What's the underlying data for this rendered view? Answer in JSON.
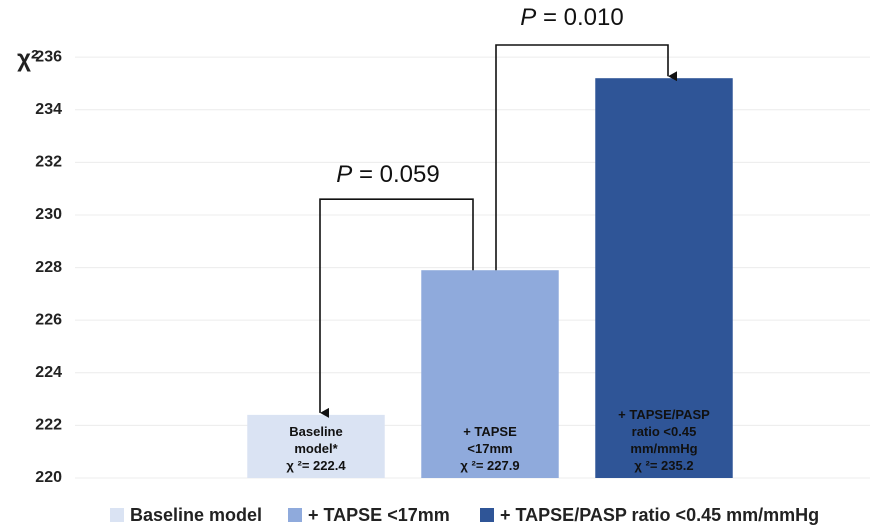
{
  "chart_data": {
    "type": "bar",
    "y_label": "χ²",
    "categories": [
      "Baseline model",
      "+ TAPSE <17mm",
      "+ TAPSE/PASP ratio <0.45 mm/mmHg"
    ],
    "bar_labels": [
      "Baseline model*",
      "+ TAPSE <17mm",
      "+ TAPSE/PASP ratio <0.45 mm/mmHg"
    ],
    "values": [
      222.4,
      227.9,
      235.2
    ],
    "value_labels": [
      "χ ²= 222.4",
      "χ ²= 227.9",
      "χ ²= 235.2"
    ],
    "colors": [
      "#dae3f3",
      "#8faadc",
      "#2f5597"
    ],
    "annotations": [
      "P = 0.059",
      "P = 0.010"
    ],
    "ylim": [
      220,
      236.5
    ],
    "yticks": [
      220,
      222,
      224,
      226,
      228,
      230,
      232,
      234,
      236
    ],
    "grid": true
  }
}
